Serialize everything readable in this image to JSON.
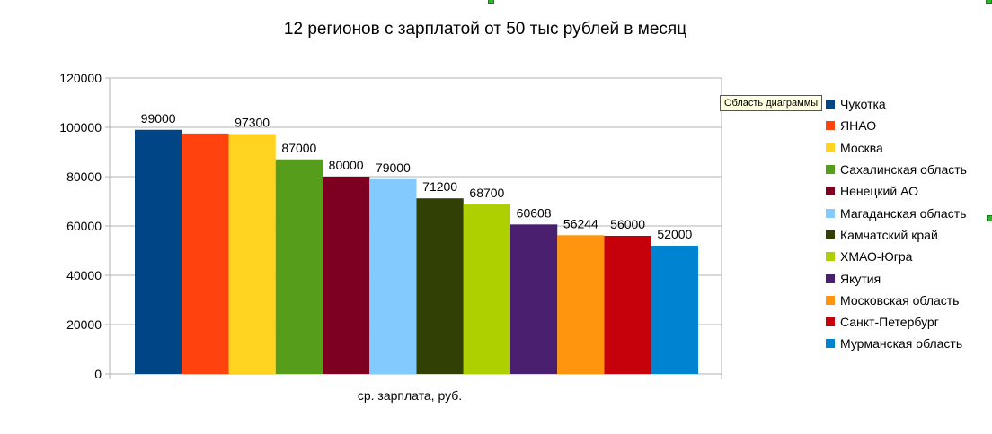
{
  "chart_data": {
    "type": "bar",
    "title": "12 регионов с зарплатой от 50 тыс рублей в месяц",
    "xlabel": "ср. зарплата, руб.",
    "ylabel": "",
    "ylim": [
      0,
      120000
    ],
    "yticks": [
      "0",
      "20000",
      "40000",
      "60000",
      "80000",
      "100000",
      "120000"
    ],
    "grid": true,
    "legend_position": "right",
    "series": [
      {
        "name": "Чукотка",
        "value": 99000,
        "label": "99000",
        "color": "#004586"
      },
      {
        "name": "ЯНАО",
        "value": 97500,
        "label": "",
        "color": "#FF420E"
      },
      {
        "name": "Москва",
        "value": 97300,
        "label": "97300",
        "color": "#FFD320"
      },
      {
        "name": "Сахалинская область",
        "value": 87000,
        "label": "87000",
        "color": "#579D1C"
      },
      {
        "name": "Ненецкий АО",
        "value": 80000,
        "label": "80000",
        "color": "#7E0021"
      },
      {
        "name": "Магаданская область",
        "value": 79000,
        "label": "79000",
        "color": "#83CAFF"
      },
      {
        "name": "Камчатский край",
        "value": 71200,
        "label": "71200",
        "color": "#314004"
      },
      {
        "name": "ХМАО-Югра",
        "value": 68700,
        "label": "68700",
        "color": "#AECF00"
      },
      {
        "name": "Якутия",
        "value": 60608,
        "label": "60608",
        "color": "#4B1F6F"
      },
      {
        "name": "Московская область",
        "value": 56244,
        "label": "56244",
        "color": "#FF950E"
      },
      {
        "name": "Санкт-Петербург",
        "value": 56000,
        "label": "56000",
        "color": "#C5000B"
      },
      {
        "name": "Мурманская область",
        "value": 52000,
        "label": "52000",
        "color": "#0084D1"
      }
    ]
  },
  "ui": {
    "tooltip": "Область диаграммы",
    "selection_color": "#2db52d"
  }
}
